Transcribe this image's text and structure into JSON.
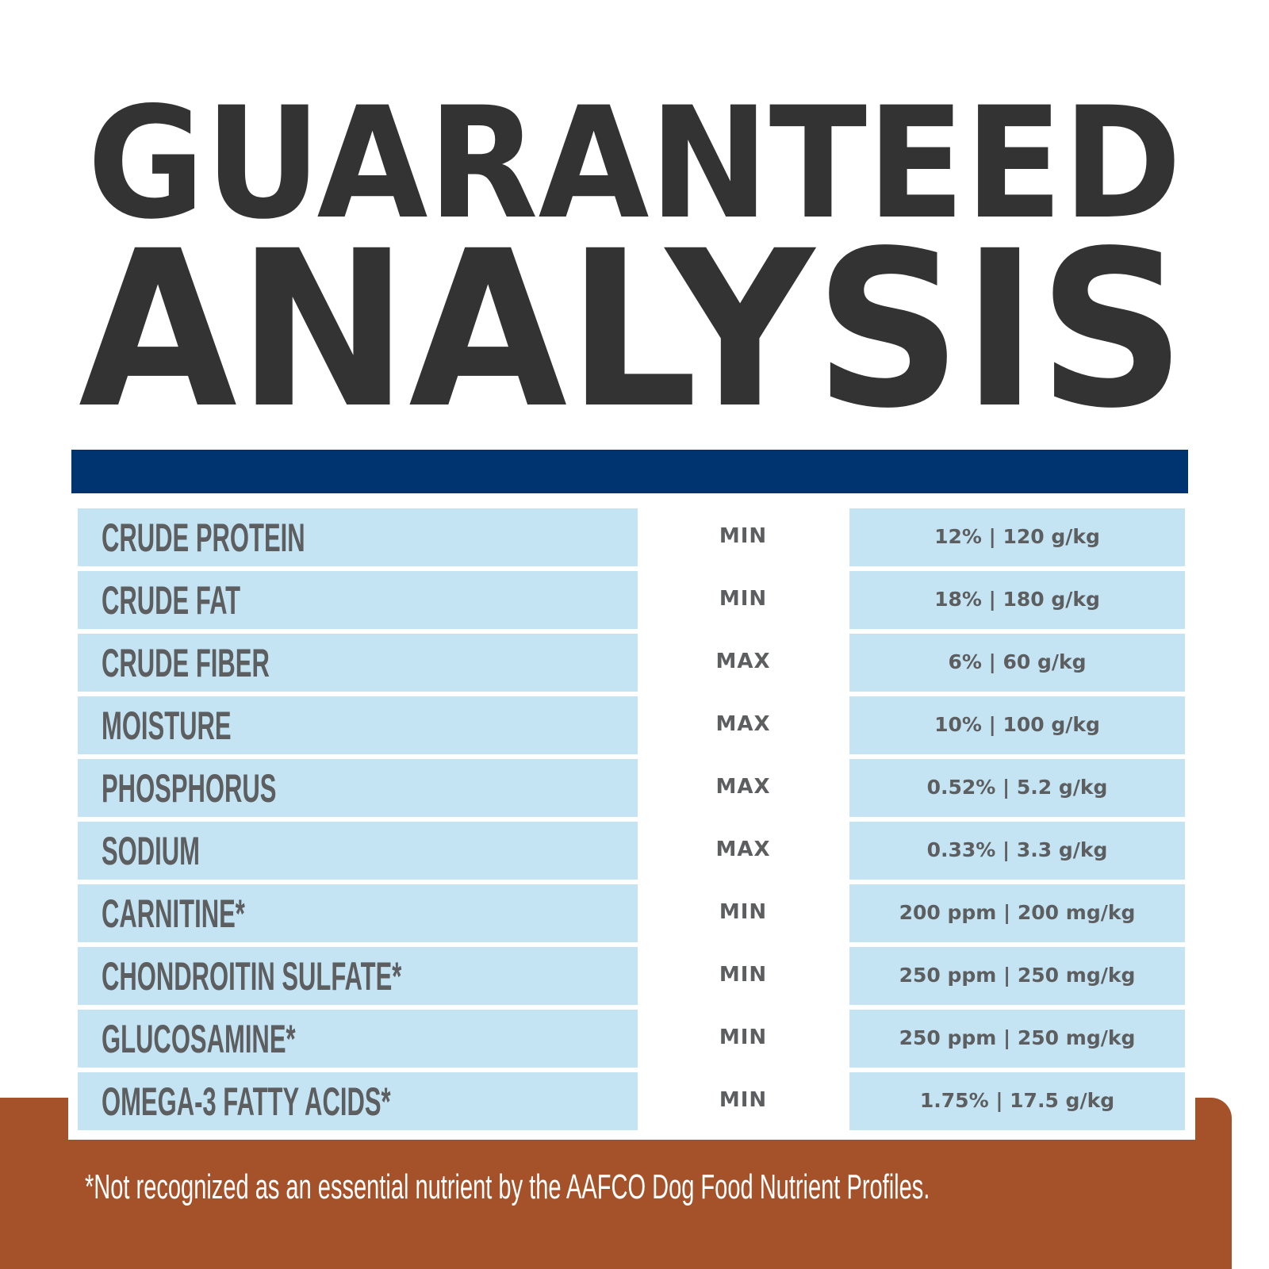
{
  "title": {
    "line1": "GUARANTEED",
    "line2": "ANALYSIS"
  },
  "colors": {
    "title": "#333333",
    "bar": "#003470",
    "cell": "#c5e4f3",
    "text": "#5d5e60",
    "footer": "#a5522a"
  },
  "rows": [
    {
      "nutrient": "CRUDE PROTEIN",
      "type": "MIN",
      "value": "12% | 120 g/kg"
    },
    {
      "nutrient": "CRUDE FAT",
      "type": "MIN",
      "value": "18% | 180 g/kg"
    },
    {
      "nutrient": "CRUDE FIBER",
      "type": "MAX",
      "value": "6% | 60 g/kg"
    },
    {
      "nutrient": "MOISTURE",
      "type": "MAX",
      "value": "10% | 100 g/kg"
    },
    {
      "nutrient": "PHOSPHORUS",
      "type": "MAX",
      "value": "0.52% | 5.2 g/kg"
    },
    {
      "nutrient": "SODIUM",
      "type": "MAX",
      "value": "0.33% | 3.3 g/kg"
    },
    {
      "nutrient": "CARNITINE*",
      "type": "MIN",
      "value": "200 ppm | 200 mg/kg"
    },
    {
      "nutrient": "CHONDROITIN SULFATE*",
      "type": "MIN",
      "value": "250 ppm | 250 mg/kg"
    },
    {
      "nutrient": "GLUCOSAMINE*",
      "type": "MIN",
      "value": "250 ppm | 250 mg/kg"
    },
    {
      "nutrient": "OMEGA-3 FATTY ACIDS*",
      "type": "MIN",
      "value": "1.75% | 17.5 g/kg"
    }
  ],
  "footnote": "*Not recognized as an essential nutrient by the AAFCO Dog Food Nutrient Profiles."
}
